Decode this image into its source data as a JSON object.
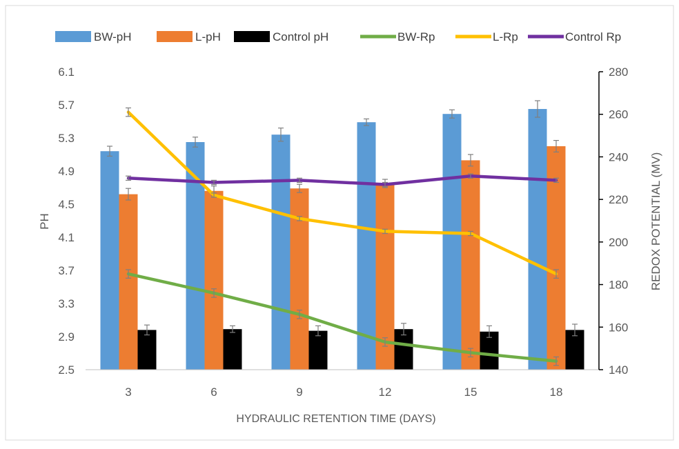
{
  "chart_data": {
    "type": "bar",
    "categories": [
      "3",
      "6",
      "9",
      "12",
      "15",
      "18"
    ],
    "xlabel": "HYDRAULIC RETENTION TIME (DAYS)",
    "ylabel": "PH",
    "y2label": "REDOX POTENTIAL (MV)",
    "ylim": [
      2.5,
      6.1
    ],
    "yticks": [
      "2.5",
      "2.9",
      "3.3",
      "3.7",
      "4.1",
      "4.5",
      "4.9",
      "5.3",
      "5.7",
      "6.1"
    ],
    "y2lim": [
      140,
      280
    ],
    "y2ticks": [
      "140",
      "160",
      "180",
      "200",
      "220",
      "240",
      "260",
      "280"
    ],
    "grid": false,
    "legend_position": "top",
    "bar_series": [
      {
        "name": "BW-pH",
        "color": "#5B9BD5",
        "values": [
          5.14,
          5.25,
          5.34,
          5.49,
          5.59,
          5.65
        ],
        "errors": [
          0.06,
          0.06,
          0.08,
          0.04,
          0.05,
          0.1
        ]
      },
      {
        "name": "L-pH",
        "color": "#ED7D31",
        "values": [
          4.62,
          4.66,
          4.69,
          4.75,
          5.03,
          5.2
        ],
        "errors": [
          0.07,
          0.06,
          0.05,
          0.05,
          0.07,
          0.07
        ]
      },
      {
        "name": "Control pH",
        "color": "#000000",
        "values": [
          2.98,
          2.99,
          2.97,
          2.99,
          2.96,
          2.98
        ],
        "errors": [
          0.06,
          0.04,
          0.06,
          0.07,
          0.07,
          0.07
        ]
      }
    ],
    "line_series": [
      {
        "name": "BW-Rp",
        "color": "#70AD47",
        "values": [
          185,
          176,
          166,
          153,
          148,
          144
        ],
        "errors": [
          2,
          2,
          2,
          2,
          2,
          2
        ]
      },
      {
        "name": "L-Rp",
        "color": "#FFC000",
        "values": [
          261,
          222,
          211,
          205,
          204,
          185
        ],
        "errors": [
          2,
          1,
          1,
          1,
          1,
          2
        ]
      },
      {
        "name": "Control Rp",
        "color": "#7030A0",
        "values": [
          230,
          228,
          229,
          227,
          231,
          229
        ],
        "errors": [
          1,
          1,
          1,
          1,
          1,
          1
        ]
      }
    ]
  }
}
